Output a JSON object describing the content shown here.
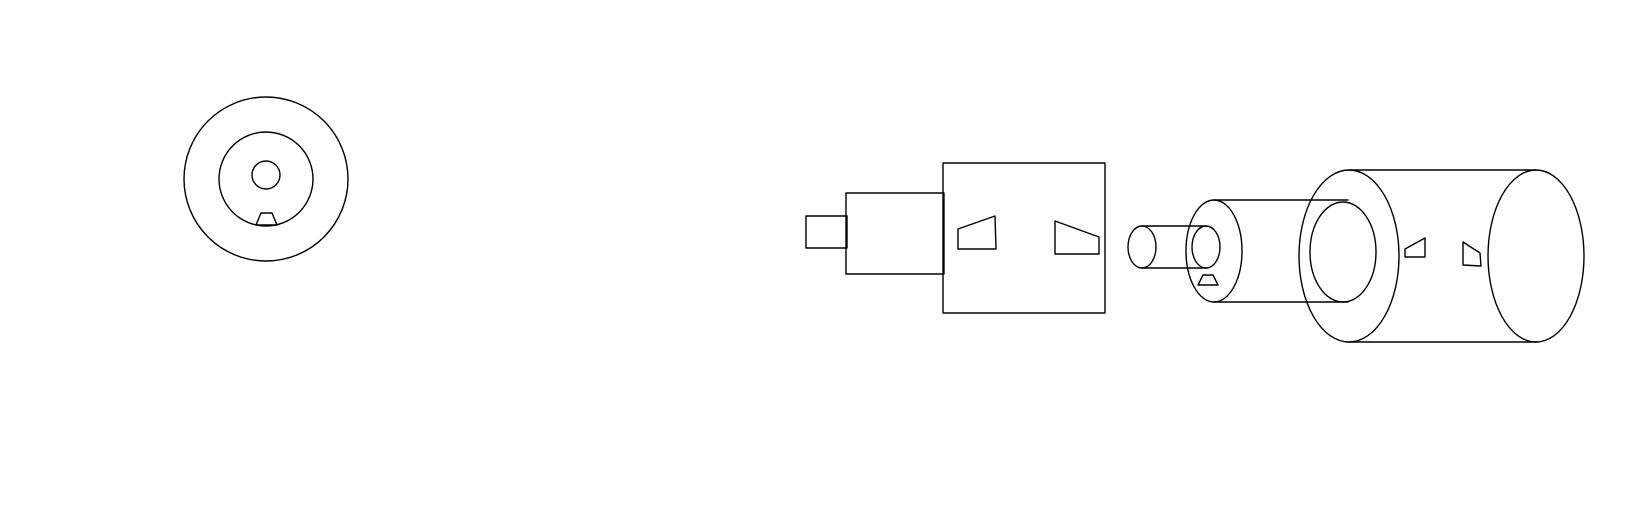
{
  "colors": {
    "background": "#ffffff",
    "line": "#000000"
  },
  "diagram": {
    "style": "black line drawing on white background, no text",
    "views": [
      "end-view",
      "side-view"
    ],
    "end_view_parts": [
      "outer-ring",
      "inner-ring",
      "center-hole",
      "key-notch"
    ],
    "side_view_parts": [
      "shaft-tip",
      "shaft-collar",
      "hub-block",
      "hub-slot-left",
      "hub-slot-right",
      "pin",
      "bushing",
      "sleeve",
      "sleeve-slot-left",
      "sleeve-slot-right"
    ]
  }
}
